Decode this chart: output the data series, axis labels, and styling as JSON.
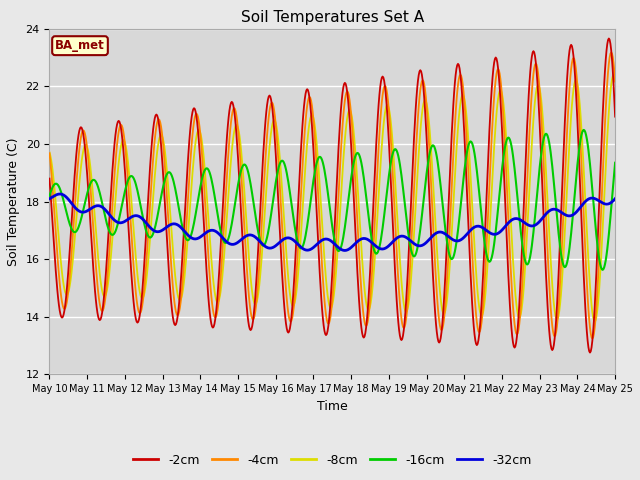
{
  "title": "Soil Temperatures Set A",
  "xlabel": "Time",
  "ylabel": "Soil Temperature (C)",
  "annotation": "BA_met",
  "ylim": [
    12,
    24
  ],
  "yticks": [
    12,
    14,
    16,
    18,
    20,
    22,
    24
  ],
  "xlim": [
    0,
    360
  ],
  "colors": {
    "-2cm": "#cc0000",
    "-4cm": "#ff8800",
    "-8cm": "#dddd00",
    "-16cm": "#00cc00",
    "-32cm": "#0000dd"
  },
  "legend_labels": [
    "-2cm",
    "-4cm",
    "-8cm",
    "-16cm",
    "-32cm"
  ],
  "background_color": "#e8e8e8",
  "plot_bg_color": "#d8d8d8",
  "x_tick_labels": [
    "May 10",
    "May 11",
    "May 12",
    "May 13",
    "May 14",
    "May 15",
    "May 16",
    "May 17",
    "May 18",
    "May 19",
    "May 20",
    "May 21",
    "May 22",
    "May 23",
    "May 24",
    "May 25"
  ],
  "hours_per_day": 24,
  "num_days": 15
}
